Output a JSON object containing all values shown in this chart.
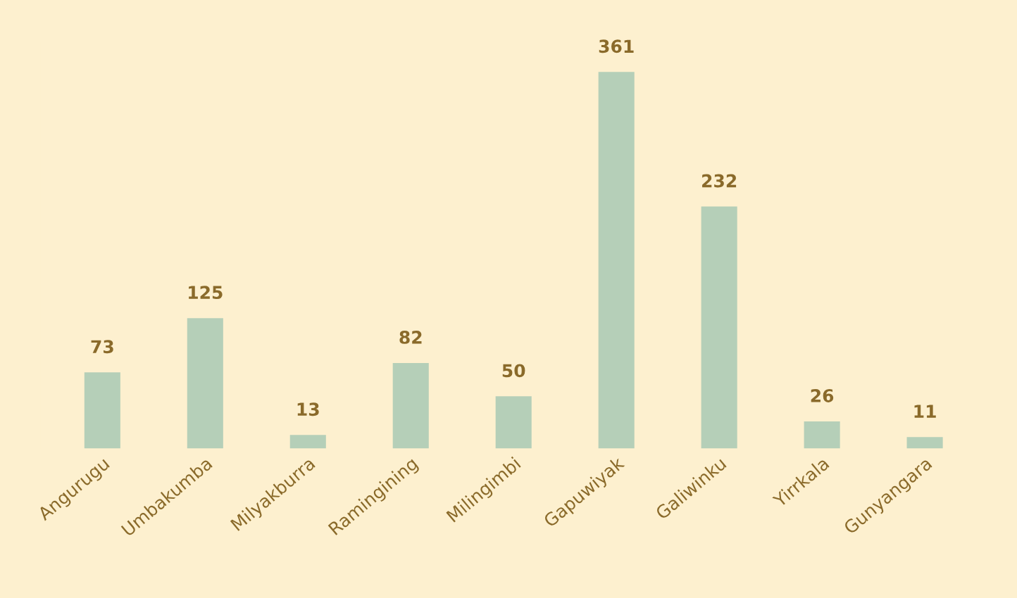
{
  "chart_data": {
    "type": "bar",
    "categories": [
      "Angurugu",
      "Umbakumba",
      "Milyakburra",
      "Ramingining",
      "Milingimbi",
      "Gapuwiyak",
      "Galiwinku",
      "Yirrkala",
      "Gunyangara"
    ],
    "values": [
      73,
      125,
      13,
      82,
      50,
      361,
      232,
      26,
      11
    ],
    "color": "#b5cfb8",
    "data_labels": true,
    "grid": false,
    "legend": false
  }
}
